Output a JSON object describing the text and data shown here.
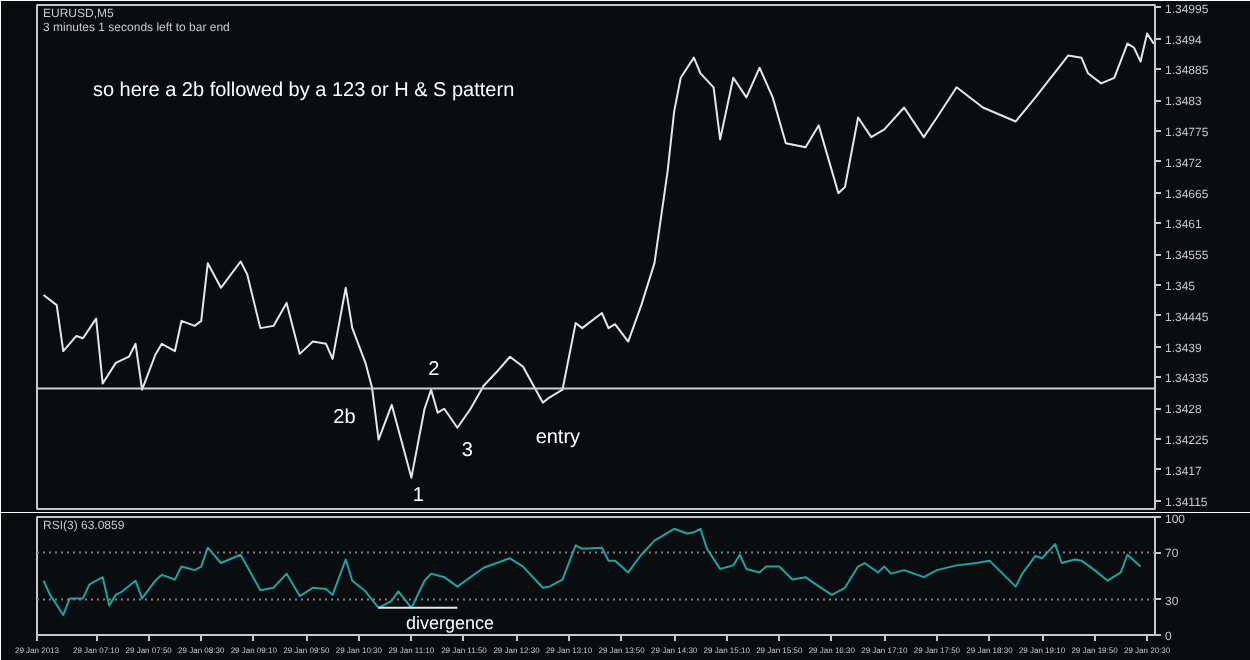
{
  "chart_data": [
    {
      "type": "line",
      "title": "EURUSD,M5",
      "subtitle": "3 minutes 1 seconds left to bar end",
      "color": "#e6e6e6",
      "line_style": "solid",
      "tick_labels": "y",
      "x": [
        "2013-01-29T06:30",
        "2013-01-29T06:40",
        "2013-01-29T06:45",
        "2013-01-29T06:55",
        "2013-01-29T07:00",
        "2013-01-29T07:10",
        "2013-01-29T07:15",
        "2013-01-29T07:25",
        "2013-01-29T07:35",
        "2013-01-29T07:40",
        "2013-01-29T07:45",
        "2013-01-29T07:55",
        "2013-01-29T08:00",
        "2013-01-29T08:10",
        "2013-01-29T08:15",
        "2013-01-29T08:25",
        "2013-01-29T08:30",
        "2013-01-29T08:35",
        "2013-01-29T08:45",
        "2013-01-29T09:00",
        "2013-01-29T09:05",
        "2013-01-29T09:15",
        "2013-01-29T09:25",
        "2013-01-29T09:35",
        "2013-01-29T09:45",
        "2013-01-29T09:55",
        "2013-01-29T10:05",
        "2013-01-29T10:10",
        "2013-01-29T10:20",
        "2013-01-29T10:25",
        "2013-01-29T10:35",
        "2013-01-29T10:40",
        "2013-01-29T10:45",
        "2013-01-29T10:55",
        "2013-01-29T11:10",
        "2013-01-29T11:20",
        "2013-01-29T11:25",
        "2013-01-29T11:30",
        "2013-01-29T11:35",
        "2013-01-29T11:45",
        "2013-01-29T11:55",
        "2013-01-29T12:05",
        "2013-01-29T12:15",
        "2013-01-29T12:25",
        "2013-01-29T12:35",
        "2013-01-29T12:50",
        "2013-01-29T12:55",
        "2013-01-29T13:05",
        "2013-01-29T13:15",
        "2013-01-29T13:20",
        "2013-01-29T13:35",
        "2013-01-29T13:40",
        "2013-01-29T13:45",
        "2013-01-29T13:55",
        "2013-01-29T14:05",
        "2013-01-29T14:15",
        "2013-01-29T14:25",
        "2013-01-29T14:30",
        "2013-01-29T14:35",
        "2013-01-29T14:45",
        "2013-01-29T14:50",
        "2013-01-29T15:00",
        "2013-01-29T15:05",
        "2013-01-29T15:15",
        "2013-01-29T15:25",
        "2013-01-29T15:35",
        "2013-01-29T15:45",
        "2013-01-29T15:55",
        "2013-01-29T16:10",
        "2013-01-29T16:20",
        "2013-01-29T16:35",
        "2013-01-29T16:40",
        "2013-01-29T16:50",
        "2013-01-29T17:00",
        "2013-01-29T17:10",
        "2013-01-29T17:25",
        "2013-01-29T17:40",
        "2013-01-29T17:50",
        "2013-01-29T18:05",
        "2013-01-29T18:25",
        "2013-01-29T18:50",
        "2013-01-29T19:05",
        "2013-01-29T19:30",
        "2013-01-29T19:40",
        "2013-01-29T19:45",
        "2013-01-29T19:55",
        "2013-01-29T20:05",
        "2013-01-29T20:15",
        "2013-01-29T20:20",
        "2013-01-29T20:25",
        "2013-01-29T20:30",
        "2013-01-29T20:35"
      ],
      "values": [
        1.34482,
        1.34464,
        1.34382,
        1.34409,
        1.34405,
        1.3444,
        1.34324,
        1.34361,
        1.34372,
        1.34395,
        1.34313,
        1.34375,
        1.34395,
        1.34382,
        1.34436,
        1.34427,
        1.34436,
        1.34539,
        1.34495,
        1.34542,
        1.34519,
        1.34423,
        1.34427,
        1.34468,
        1.34377,
        1.34399,
        1.34395,
        1.34368,
        1.34495,
        1.34423,
        1.34361,
        1.34317,
        1.34224,
        1.34286,
        1.34156,
        1.34279,
        1.34313,
        1.34272,
        1.34279,
        1.34245,
        1.34279,
        1.3432,
        1.34345,
        1.34372,
        1.34354,
        1.3429,
        1.34299,
        1.34313,
        1.34432,
        1.34423,
        1.3445,
        1.34423,
        1.3443,
        1.34399,
        1.34464,
        1.34539,
        1.34703,
        1.3481,
        1.3487,
        1.34906,
        1.34878,
        1.34853,
        1.3476,
        1.3487,
        1.34835,
        1.34888,
        1.34835,
        1.34753,
        1.34746,
        1.34785,
        1.34664,
        1.34675,
        1.34799,
        1.34764,
        1.34778,
        1.34817,
        1.34764,
        1.34799,
        1.34853,
        1.34817,
        1.34792,
        1.34835,
        1.3491,
        1.34906,
        1.34878,
        1.3486,
        1.3487,
        1.34931,
        1.34924,
        1.34899,
        1.34949,
        1.34931
      ],
      "xlim": [
        "2013-01-29T06:25",
        "2013-01-29T20:36"
      ],
      "ylim": [
        1.341,
        1.35
      ],
      "yticks": [
        1.34115,
        1.3417,
        1.34225,
        1.3428,
        1.34335,
        1.3439,
        1.34445,
        1.345,
        1.34555,
        1.3461,
        1.34665,
        1.3472,
        1.34775,
        1.3483,
        1.34885,
        1.3494,
        1.34995
      ],
      "ref_lines": [
        {
          "axis": "y",
          "value": 1.34315,
          "color": "#d0d0d0",
          "line_style": "solid"
        }
      ],
      "annotations": [
        "so here a 2b followed by a 123 or H & S pattern",
        "2b",
        "1",
        "2",
        "3",
        "entry"
      ]
    },
    {
      "type": "line",
      "title": "RSI(3) 63.0859",
      "tick_labels": true,
      "x": [
        "2013-01-29T06:30",
        "2013-01-29T06:35",
        "2013-01-29T06:45",
        "2013-01-29T06:50",
        "2013-01-29T07:00",
        "2013-01-29T07:05",
        "2013-01-29T07:15",
        "2013-01-29T07:20",
        "2013-01-29T07:25",
        "2013-01-29T07:30",
        "2013-01-29T07:40",
        "2013-01-29T07:45",
        "2013-01-29T07:55",
        "2013-01-29T08:00",
        "2013-01-29T08:10",
        "2013-01-29T08:15",
        "2013-01-29T08:25",
        "2013-01-29T08:30",
        "2013-01-29T08:35",
        "2013-01-29T08:45",
        "2013-01-29T09:00",
        "2013-01-29T09:05",
        "2013-01-29T09:15",
        "2013-01-29T09:25",
        "2013-01-29T09:35",
        "2013-01-29T09:45",
        "2013-01-29T09:55",
        "2013-01-29T10:05",
        "2013-01-29T10:10",
        "2013-01-29T10:20",
        "2013-01-29T10:25",
        "2013-01-29T10:35",
        "2013-01-29T10:45",
        "2013-01-29T10:55",
        "2013-01-29T11:00",
        "2013-01-29T11:10",
        "2013-01-29T11:20",
        "2013-01-29T11:25",
        "2013-01-29T11:35",
        "2013-01-29T11:45",
        "2013-01-29T11:55",
        "2013-01-29T12:05",
        "2013-01-29T12:15",
        "2013-01-29T12:25",
        "2013-01-29T12:35",
        "2013-01-29T12:50",
        "2013-01-29T12:55",
        "2013-01-29T13:05",
        "2013-01-29T13:15",
        "2013-01-29T13:20",
        "2013-01-29T13:35",
        "2013-01-29T13:40",
        "2013-01-29T13:45",
        "2013-01-29T13:55",
        "2013-01-29T14:05",
        "2013-01-29T14:15",
        "2013-01-29T14:30",
        "2013-01-29T14:40",
        "2013-01-29T14:45",
        "2013-01-29T14:50",
        "2013-01-29T14:55",
        "2013-01-29T15:05",
        "2013-01-29T15:15",
        "2013-01-29T15:20",
        "2013-01-29T15:25",
        "2013-01-29T15:35",
        "2013-01-29T15:40",
        "2013-01-29T15:50",
        "2013-01-29T16:00",
        "2013-01-29T16:10",
        "2013-01-29T16:15",
        "2013-01-29T16:30",
        "2013-01-29T16:40",
        "2013-01-29T16:50",
        "2013-01-29T16:55",
        "2013-01-29T17:05",
        "2013-01-29T17:10",
        "2013-01-29T17:15",
        "2013-01-29T17:25",
        "2013-01-29T17:40",
        "2013-01-29T17:50",
        "2013-01-29T18:05",
        "2013-01-29T18:20",
        "2013-01-29T18:30",
        "2013-01-29T18:50",
        "2013-01-29T18:55",
        "2013-01-29T19:05",
        "2013-01-29T19:10",
        "2013-01-29T19:20",
        "2013-01-29T19:25",
        "2013-01-29T19:35",
        "2013-01-29T19:40",
        "2013-01-29T19:50",
        "2013-01-29T20:00",
        "2013-01-29T20:10",
        "2013-01-29T20:15",
        "2013-01-29T20:25"
      ],
      "series": [
        {
          "color": "#1fa3a3",
          "values": [
            46,
            34,
            17,
            31,
            31,
            43,
            49,
            25,
            34,
            37,
            46,
            31,
            46,
            51,
            47,
            58,
            55,
            58,
            74,
            61,
            68,
            58,
            38,
            40,
            52,
            33,
            40,
            39,
            34,
            64,
            46,
            37,
            23,
            29,
            37,
            23,
            46,
            52,
            49,
            41,
            49,
            57,
            61,
            65,
            58,
            40,
            41,
            47,
            76,
            73,
            74,
            63,
            63,
            53,
            68,
            80,
            90,
            86,
            87,
            90,
            73,
            56,
            59,
            68,
            56,
            53,
            58,
            58,
            47,
            49,
            45,
            34,
            40,
            58,
            61,
            53,
            58,
            52,
            55,
            49,
            55,
            59,
            61,
            63,
            41,
            52,
            67,
            65,
            77,
            61,
            64,
            63,
            55,
            46,
            53,
            68,
            58
          ]
        },
        {
          "type": "line",
          "color": "#e6e6e6",
          "x": [
            "2013-01-29T10:45",
            "2013-01-29T11:45"
          ],
          "values": [
            23,
            23
          ]
        }
      ],
      "xlim": [
        "2013-01-29T06:25",
        "2013-01-29T20:36"
      ],
      "ylim": [
        0,
        100
      ],
      "yticks": [
        0,
        30,
        70,
        100
      ],
      "xticks": [
        {
          "value": "2013-01-29T06:25",
          "label": "29 Jan 2013"
        },
        {
          "value": "2013-01-29T07:10",
          "label": "29 Jan 07:10"
        },
        {
          "value": "2013-01-29T07:50",
          "label": "29 Jan 07:50"
        },
        {
          "value": "2013-01-29T08:30",
          "label": "29 Jan 08:30"
        },
        {
          "value": "2013-01-29T09:10",
          "label": "29 Jan 09:10"
        },
        {
          "value": "2013-01-29T09:50",
          "label": "29 Jan 09:50"
        },
        {
          "value": "2013-01-29T10:30",
          "label": "29 Jan 10:30"
        },
        {
          "value": "2013-01-29T11:10",
          "label": "29 Jan 11:10"
        },
        {
          "value": "2013-01-29T11:50",
          "label": "29 Jan 11:50"
        },
        {
          "value": "2013-01-29T12:30",
          "label": "29 Jan 12:30"
        },
        {
          "value": "2013-01-29T13:10",
          "label": "29 Jan 13:10"
        },
        {
          "value": "2013-01-29T13:50",
          "label": "29 Jan 13:50"
        },
        {
          "value": "2013-01-29T14:30",
          "label": "29 Jan 14:30"
        },
        {
          "value": "2013-01-29T15:10",
          "label": "29 Jan 15:10"
        },
        {
          "value": "2013-01-29T15:50",
          "label": "29 Jan 15:50"
        },
        {
          "value": "2013-01-29T16:30",
          "label": "29 Jan 16:30"
        },
        {
          "value": "2013-01-29T17:10",
          "label": "29 Jan 17:10"
        },
        {
          "value": "2013-01-29T17:50",
          "label": "29 Jan 17:50"
        },
        {
          "value": "2013-01-29T18:30",
          "label": "29 Jan 18:30"
        },
        {
          "value": "2013-01-29T19:10",
          "label": "29 Jan 19:10"
        },
        {
          "value": "2013-01-29T19:50",
          "label": "29 Jan 19:50"
        },
        {
          "value": "2013-01-29T20:30",
          "label": "29 Jan 20:30"
        }
      ],
      "ref_lines": [
        {
          "axis": "y",
          "value": 70,
          "color": "#808080",
          "line_style": "dotted"
        },
        {
          "axis": "y",
          "value": 30,
          "color": "#808080",
          "line_style": "dotted"
        }
      ],
      "annotations": [
        "divergence"
      ]
    }
  ]
}
